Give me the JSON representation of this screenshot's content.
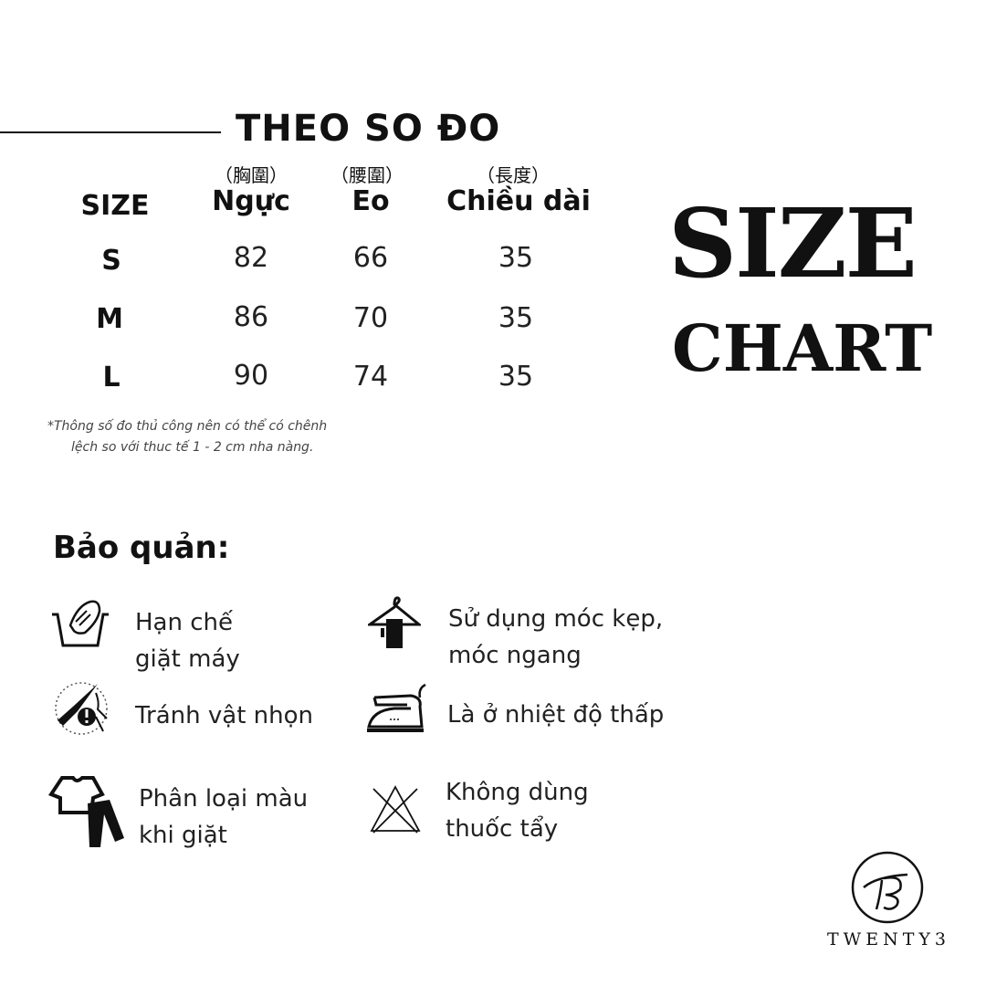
{
  "title": "THEO SO ĐO",
  "table": {
    "columns": [
      {
        "label": "SIZE",
        "cn": ""
      },
      {
        "label": "Ngực",
        "cn": "（胸圍）"
      },
      {
        "label": "Eo",
        "cn": "（腰圍）"
      },
      {
        "label": "Chiều dài",
        "cn": "（長度）"
      }
    ],
    "rows": [
      {
        "size": "S",
        "nguc": "82",
        "eo": "66",
        "dai": "35"
      },
      {
        "size": "M",
        "nguc": "86",
        "eo": "70",
        "dai": "35"
      },
      {
        "size": "L",
        "nguc": "90",
        "eo": "74",
        "dai": "35"
      }
    ]
  },
  "note": [
    "*Thông số đo thủ công nên có thể có chênh",
    "lệch so với thuc tế 1 - 2 cm nha nàng."
  ],
  "heading": {
    "line1": "SIZE",
    "line2": "CHART"
  },
  "care": {
    "title": "Bảo quản:",
    "items": [
      {
        "icon": "hand-wash-icon",
        "lines": [
          "Hạn  chế",
          "giặt máy"
        ]
      },
      {
        "icon": "hanger-icon",
        "lines": [
          "Sử dụng móc kẹp,",
          "móc ngang"
        ]
      },
      {
        "icon": "no-sharp-objects-icon",
        "lines": [
          "Tránh vật nhọn"
        ]
      },
      {
        "icon": "iron-low-heat-icon",
        "lines": [
          "Là ở nhiệt độ thấp"
        ]
      },
      {
        "icon": "separate-colors-icon",
        "lines": [
          "Phân loại màu",
          "khi giặt"
        ]
      },
      {
        "icon": "no-bleach-icon",
        "lines": [
          "Không  dùng",
          "thuốc tẩy"
        ]
      }
    ]
  },
  "brand": {
    "name": "TWENTY3",
    "monogram": "TB"
  }
}
